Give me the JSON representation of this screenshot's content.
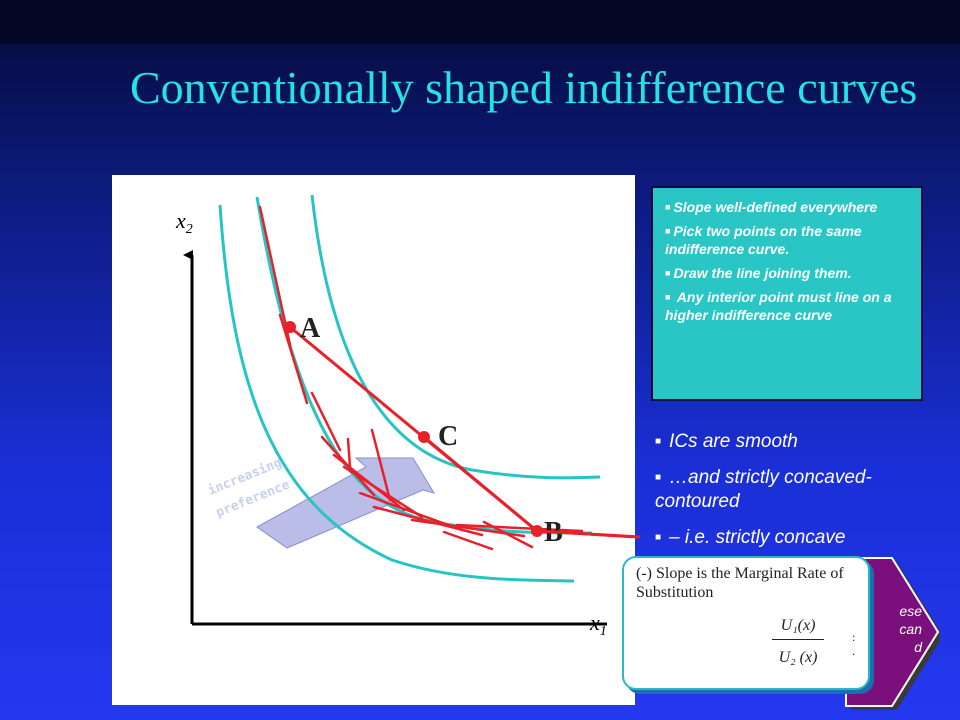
{
  "title": "Conventionally shaped indifference curves",
  "axes": {
    "x_label": "x",
    "x_sub": "1",
    "y_label": "x",
    "y_sub": "2"
  },
  "points": {
    "a": "A",
    "b": "B",
    "c": "C"
  },
  "preference_label": {
    "line1": "increasing",
    "line2": "preference"
  },
  "infobox": {
    "items": [
      "Slope well-defined everywhere",
      "Pick two points on the same indifference curve.",
      "Draw the line joining them.",
      " Any interior point must line on a  higher indifference curve"
    ]
  },
  "bullets": [
    "ICs are smooth",
    "…and strictly concaved-contoured",
    "– i.e. strictly concave"
  ],
  "arrow_text": [
    "ese",
    "can",
    "d"
  ],
  "callout": {
    "text": "(-) Slope is the Marginal Rate of Substitution",
    "numerator": "U₁(x)",
    "denominator": "U₂ (x)",
    "dots": [
      ":",
      "."
    ]
  },
  "colors": {
    "title": "#26e3e3",
    "indifference_curve": "#27c4c4",
    "tangent_line": "#e8202a",
    "infobox_fill": "#2ac6c6",
    "arrow_fill": "#7b0f7b"
  }
}
